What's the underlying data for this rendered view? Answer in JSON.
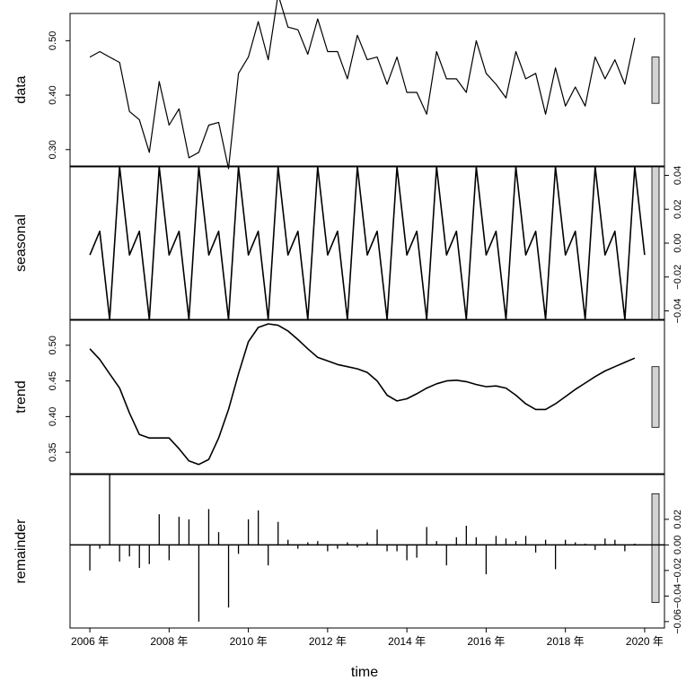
{
  "chart_data": {
    "type": "line",
    "subtype": "stl-decomposition",
    "xlabel": "time",
    "x_ticks": [
      {
        "value": 2006,
        "label": "2006 年"
      },
      {
        "value": 2008,
        "label": "2008 年"
      },
      {
        "value": 2010,
        "label": "2010 年"
      },
      {
        "value": 2012,
        "label": "2012 年"
      },
      {
        "value": 2014,
        "label": "2014 年"
      },
      {
        "value": 2016,
        "label": "2016 年"
      },
      {
        "value": 2018,
        "label": "2018 年"
      },
      {
        "value": 2020,
        "label": "2020 年"
      }
    ],
    "xlim": [
      2005.5,
      2020.5
    ],
    "panels": [
      {
        "name": "data",
        "label": "data",
        "ylim": [
          0.27,
          0.55
        ],
        "y_ticks": [
          0.3,
          0.4,
          0.5
        ],
        "y_tick_labels": [
          "0.30",
          "0.40",
          "0.50"
        ],
        "tick_side": "left",
        "scale_bar": [
          0.385,
          0.47
        ],
        "style": "line",
        "x": [
          2006.0,
          2006.25,
          2006.5,
          2006.75,
          2007.0,
          2007.25,
          2007.5,
          2007.75,
          2008.0,
          2008.25,
          2008.5,
          2008.75,
          2009.0,
          2009.25,
          2009.5,
          2009.75,
          2010.0,
          2010.25,
          2010.5,
          2010.75,
          2011.0,
          2011.25,
          2011.5,
          2011.75,
          2012.0,
          2012.25,
          2012.5,
          2012.75,
          2013.0,
          2013.25,
          2013.5,
          2013.75,
          2014.0,
          2014.25,
          2014.5,
          2014.75,
          2015.0,
          2015.25,
          2015.5,
          2015.75,
          2016.0,
          2016.25,
          2016.5,
          2016.75,
          2017.0,
          2017.25,
          2017.5,
          2017.75,
          2018.0,
          2018.25,
          2018.5,
          2018.75,
          2019.0,
          2019.25,
          2019.5,
          2019.75
        ],
        "y": [
          0.47,
          0.48,
          0.47,
          0.46,
          0.37,
          0.355,
          0.295,
          0.425,
          0.345,
          0.375,
          0.285,
          0.295,
          0.345,
          0.35,
          0.265,
          0.44,
          0.47,
          0.535,
          0.465,
          0.585,
          0.525,
          0.52,
          0.475,
          0.54,
          0.48,
          0.48,
          0.43,
          0.51,
          0.465,
          0.47,
          0.42,
          0.47,
          0.405,
          0.405,
          0.365,
          0.48,
          0.43,
          0.43,
          0.405,
          0.5,
          0.44,
          0.42,
          0.395,
          0.48,
          0.43,
          0.44,
          0.365,
          0.45,
          0.38,
          0.415,
          0.38,
          0.47,
          0.43,
          0.465,
          0.42,
          0.505
        ]
      },
      {
        "name": "seasonal",
        "label": "seasonal",
        "ylim": [
          -0.045,
          0.045
        ],
        "y_ticks": [
          -0.04,
          -0.02,
          0.0,
          0.02,
          0.04
        ],
        "y_tick_labels": [
          "−0.04",
          "−0.02",
          "0.00",
          "0.02",
          "0.04"
        ],
        "tick_side": "right",
        "scale_bar": [
          -0.045,
          0.045
        ],
        "style": "thick-line",
        "pattern": [
          -0.007,
          0.007,
          -0.045,
          0.045
        ],
        "x_start": 2006.0,
        "period_step": 0.25,
        "cycles": 14
      },
      {
        "name": "trend",
        "label": "trend",
        "ylim": [
          0.32,
          0.535
        ],
        "y_ticks": [
          0.35,
          0.4,
          0.45,
          0.5
        ],
        "y_tick_labels": [
          "0.35",
          "0.40",
          "0.45",
          "0.50"
        ],
        "tick_side": "left",
        "scale_bar": [
          0.385,
          0.47
        ],
        "style": "thick-line",
        "x": [
          2006.0,
          2006.25,
          2006.5,
          2006.75,
          2007.0,
          2007.25,
          2007.5,
          2007.75,
          2008.0,
          2008.25,
          2008.5,
          2008.75,
          2009.0,
          2009.25,
          2009.5,
          2009.75,
          2010.0,
          2010.25,
          2010.5,
          2010.75,
          2011.0,
          2011.25,
          2011.5,
          2011.75,
          2012.0,
          2012.25,
          2012.5,
          2012.75,
          2013.0,
          2013.25,
          2013.5,
          2013.75,
          2014.0,
          2014.25,
          2014.5,
          2014.75,
          2015.0,
          2015.25,
          2015.5,
          2015.75,
          2016.0,
          2016.25,
          2016.5,
          2016.75,
          2017.0,
          2017.25,
          2017.5,
          2017.75,
          2018.0,
          2018.25,
          2018.5,
          2018.75,
          2019.0,
          2019.25,
          2019.5,
          2019.75
        ],
        "y": [
          0.495,
          0.48,
          0.46,
          0.44,
          0.405,
          0.375,
          0.37,
          0.37,
          0.37,
          0.355,
          0.338,
          0.333,
          0.34,
          0.37,
          0.41,
          0.46,
          0.505,
          0.525,
          0.53,
          0.528,
          0.52,
          0.508,
          0.495,
          0.483,
          0.478,
          0.473,
          0.47,
          0.467,
          0.462,
          0.45,
          0.43,
          0.422,
          0.425,
          0.432,
          0.44,
          0.446,
          0.45,
          0.451,
          0.449,
          0.445,
          0.442,
          0.443,
          0.44,
          0.43,
          0.418,
          0.41,
          0.41,
          0.418,
          0.428,
          0.438,
          0.447,
          0.456,
          0.464,
          0.47,
          0.476,
          0.482
        ]
      },
      {
        "name": "remainder",
        "label": "remainder",
        "ylim": [
          -0.065,
          0.055
        ],
        "y_ticks": [
          -0.06,
          -0.04,
          -0.02,
          0.0,
          0.02
        ],
        "y_tick_labels": [
          "−0.06",
          "−0.04",
          "−0.02",
          "0.00",
          "0.02"
        ],
        "tick_side": "right",
        "scale_bar": [
          -0.045,
          0.04
        ],
        "style": "bars",
        "x": [
          2006.0,
          2006.25,
          2006.5,
          2006.75,
          2007.0,
          2007.25,
          2007.5,
          2007.75,
          2008.0,
          2008.25,
          2008.5,
          2008.75,
          2009.0,
          2009.25,
          2009.5,
          2009.75,
          2010.0,
          2010.25,
          2010.5,
          2010.75,
          2011.0,
          2011.25,
          2011.5,
          2011.75,
          2012.0,
          2012.25,
          2012.5,
          2012.75,
          2013.0,
          2013.25,
          2013.5,
          2013.75,
          2014.0,
          2014.25,
          2014.5,
          2014.75,
          2015.0,
          2015.25,
          2015.5,
          2015.75,
          2016.0,
          2016.25,
          2016.5,
          2016.75,
          2017.0,
          2017.25,
          2017.5,
          2017.75,
          2018.0,
          2018.25,
          2018.5,
          2018.75,
          2019.0,
          2019.25,
          2019.5,
          2019.75
        ],
        "y": [
          -0.02,
          -0.003,
          0.055,
          -0.013,
          -0.009,
          -0.018,
          -0.015,
          0.024,
          -0.012,
          0.022,
          0.02,
          -0.06,
          0.028,
          0.01,
          -0.049,
          -0.007,
          0.02,
          0.027,
          -0.016,
          0.018,
          0.004,
          -0.003,
          0.002,
          0.003,
          -0.005,
          -0.003,
          0.002,
          -0.002,
          0.002,
          0.012,
          -0.005,
          -0.005,
          -0.012,
          -0.01,
          0.014,
          0.003,
          -0.016,
          0.006,
          0.015,
          0.006,
          -0.023,
          0.007,
          0.005,
          0.003,
          0.007,
          -0.006,
          0.004,
          -0.019,
          0.004,
          0.002,
          0.001,
          -0.004,
          0.005,
          0.004,
          -0.005,
          0.001
        ]
      }
    ]
  }
}
